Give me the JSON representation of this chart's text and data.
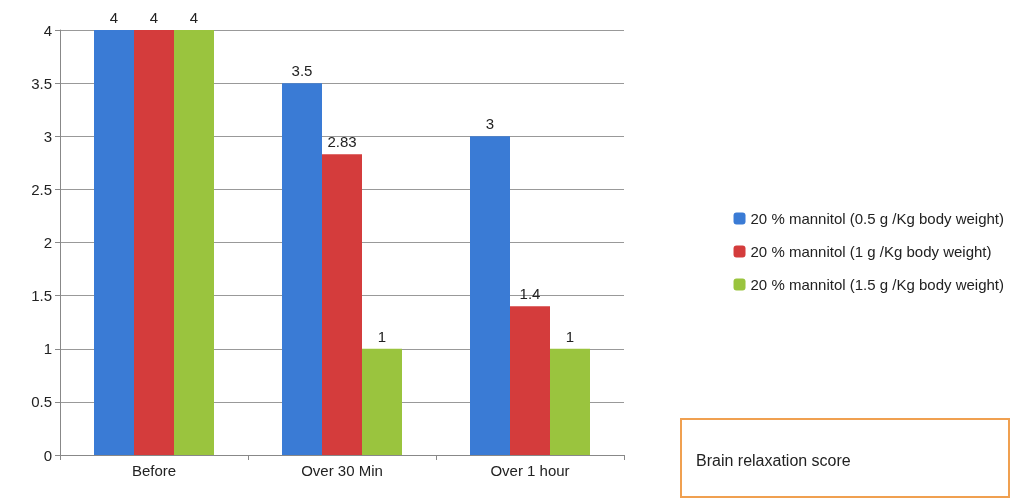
{
  "chart_data": {
    "type": "bar",
    "categories": [
      "Before",
      "Over 30 Min",
      "Over 1 hour"
    ],
    "series": [
      {
        "name": "20 % mannitol (0.5 g /Kg body weight)",
        "color": "#3a7bd5",
        "values": [
          4,
          3.5,
          3
        ]
      },
      {
        "name": "20 % mannitol (1 g /Kg body weight)",
        "color": "#d43c3c",
        "values": [
          4,
          2.83,
          1.4
        ]
      },
      {
        "name": "20 % mannitol (1.5 g /Kg body weight)",
        "color": "#9ac43e",
        "values": [
          4,
          1,
          1
        ]
      }
    ],
    "ylim": [
      0,
      4
    ],
    "yticks": [
      0,
      0.5,
      1,
      1.5,
      2,
      2.5,
      3,
      3.5,
      4
    ],
    "grid": "y",
    "legend": "right",
    "data_labels": true,
    "annotations": [
      "Brain relaxation score"
    ]
  }
}
